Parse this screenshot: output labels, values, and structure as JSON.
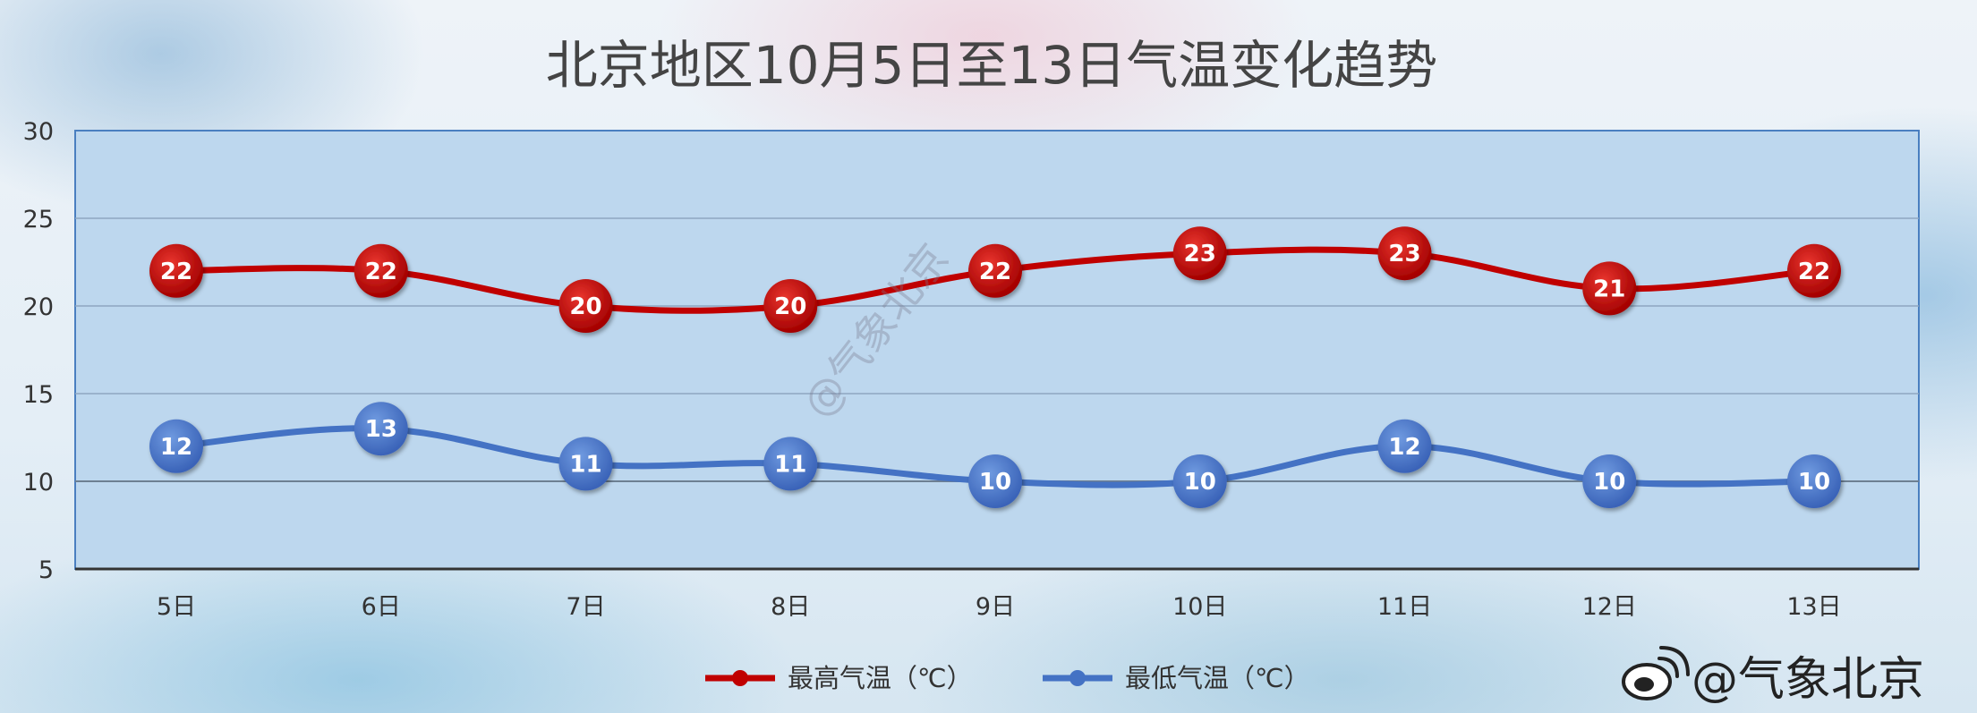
{
  "chart_data": {
    "type": "line",
    "title": "北京地区10月5日至13日气温变化趋势",
    "categories": [
      "5日",
      "6日",
      "7日",
      "8日",
      "9日",
      "10日",
      "11日",
      "12日",
      "13日"
    ],
    "series": [
      {
        "name": "最高气温（℃）",
        "color": "#c00000",
        "values": [
          22,
          22,
          20,
          20,
          22,
          23,
          23,
          21,
          22
        ]
      },
      {
        "name": "最低气温（℃）",
        "color": "#4472c4",
        "values": [
          12,
          13,
          11,
          11,
          10,
          10,
          12,
          10,
          10
        ]
      }
    ],
    "ylim": [
      5,
      30
    ],
    "yticks": [
      5,
      10,
      15,
      20,
      25,
      30
    ],
    "xlabel": "",
    "ylabel": "",
    "grid": true,
    "legend": "bottom",
    "plot_background": "#bdd7ee",
    "axis_color": "#4a7fc0"
  },
  "watermark": {
    "brand_text": "@气象北京",
    "icon": "weibo-icon",
    "overlay_text": "@气象北京"
  }
}
